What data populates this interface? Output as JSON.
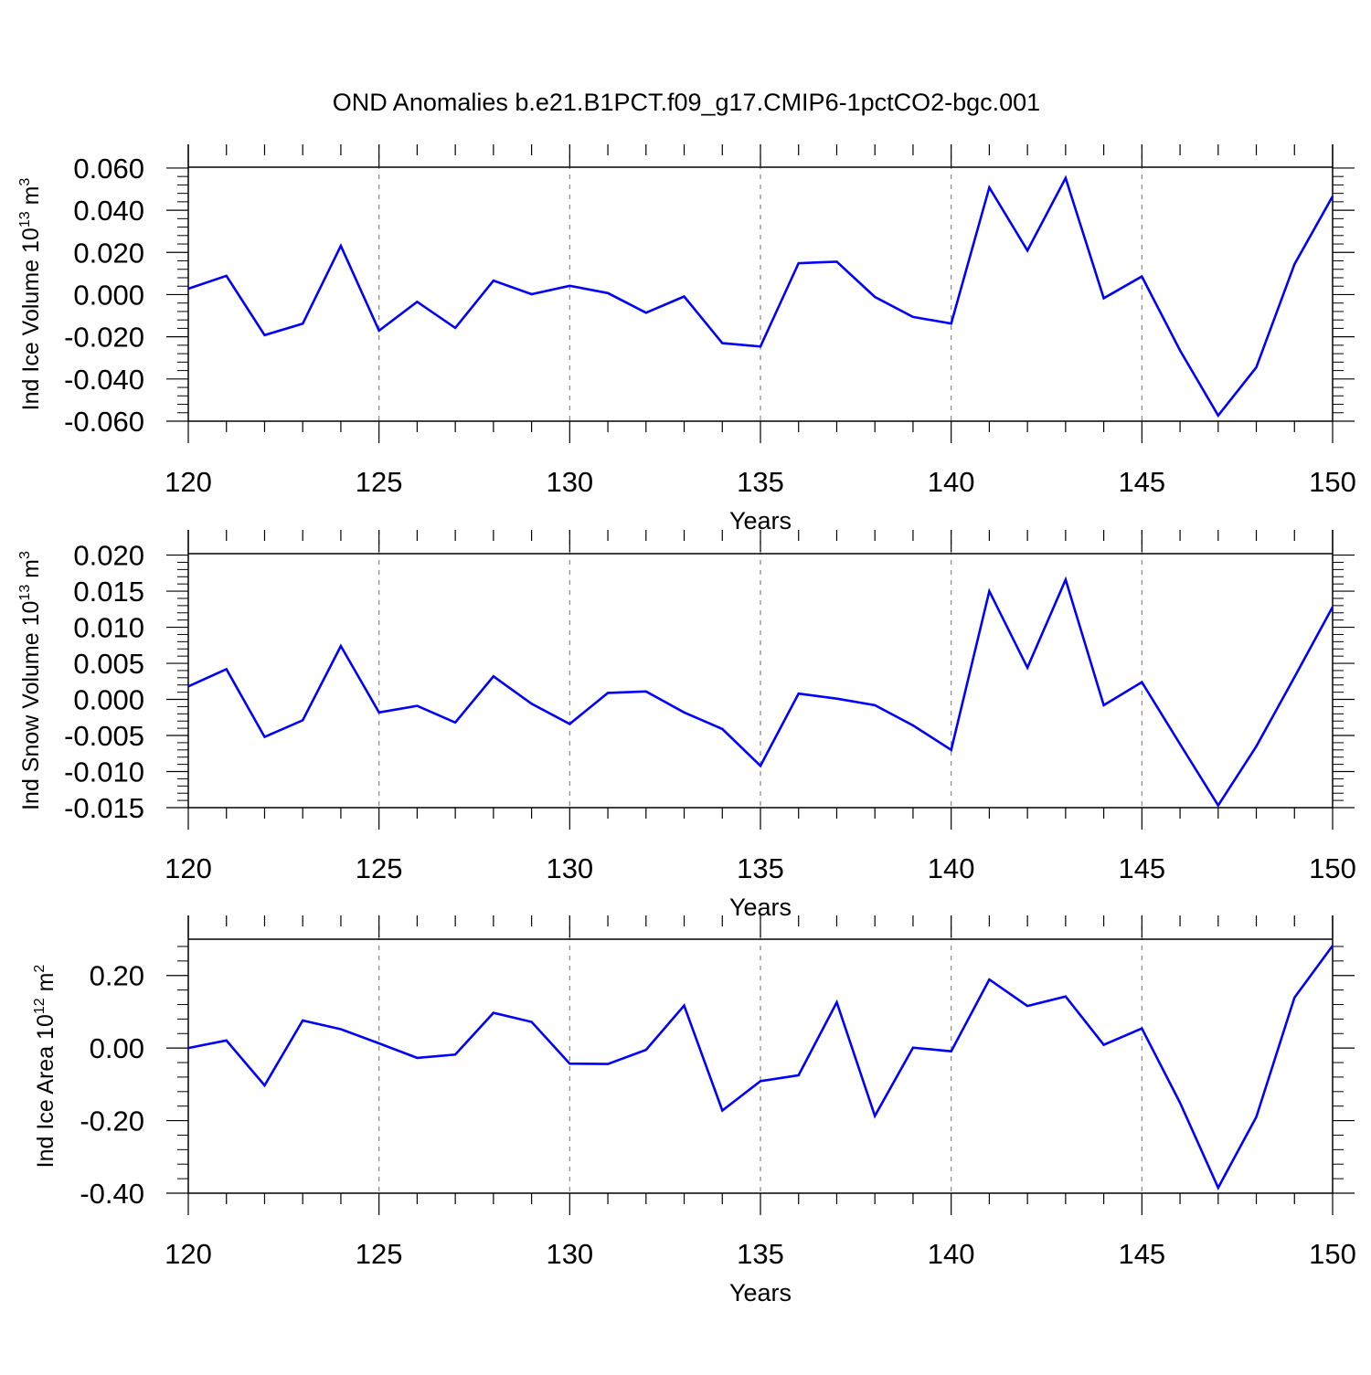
{
  "figure_title": "OND Anomalies b.e21.B1PCT.f09_g17.CMIP6-1pctCO2-bgc.001",
  "line_color": "#0000ff",
  "chart_data": [
    {
      "type": "line",
      "ylabel": {
        "main": "Ind Ice Volume 10",
        "sup": "13",
        "unit": " m",
        "unit_sup": "3"
      },
      "xlabel": "Years",
      "xlim": [
        120,
        150
      ],
      "ylim": [
        -0.06,
        0.0604
      ],
      "xticks": [
        120,
        125,
        130,
        135,
        140,
        145,
        150
      ],
      "xtick_labels": [
        "120",
        "125",
        "130",
        "135",
        "140",
        "145",
        "150"
      ],
      "yticks": [
        -0.06,
        -0.04,
        -0.02,
        0.0,
        0.02,
        0.04,
        0.06
      ],
      "ytick_labels": [
        "-0.060",
        "-0.040",
        "-0.020",
        "0.000",
        "0.020",
        "0.040",
        "0.060"
      ],
      "grid": "vertical dashed at major x ticks",
      "x": [
        120,
        121,
        122,
        123,
        124,
        125,
        126,
        127,
        128,
        129,
        130,
        131,
        132,
        133,
        134,
        135,
        136,
        137,
        138,
        139,
        140,
        141,
        142,
        143,
        144,
        145,
        146,
        147,
        148,
        149,
        150
      ],
      "values": [
        0.0028,
        0.0089,
        -0.0192,
        -0.0138,
        0.0231,
        -0.0171,
        -0.0034,
        -0.0158,
        0.0066,
        0.0002,
        0.0042,
        0.0007,
        -0.0086,
        -0.0009,
        -0.023,
        -0.0246,
        0.0149,
        0.0156,
        -0.0011,
        -0.0106,
        -0.0137,
        0.0508,
        0.0209,
        0.0553,
        -0.0017,
        0.0086,
        -0.0265,
        -0.0573,
        -0.0345,
        0.0144,
        0.0466
      ]
    },
    {
      "type": "line",
      "ylabel": {
        "main": "Ind Snow Volume 10",
        "sup": "13",
        "unit": " m",
        "unit_sup": "3"
      },
      "xlabel": "Years",
      "xlim": [
        120,
        150
      ],
      "ylim": [
        -0.015,
        0.0202
      ],
      "xticks": [
        120,
        125,
        130,
        135,
        140,
        145,
        150
      ],
      "xtick_labels": [
        "120",
        "125",
        "130",
        "135",
        "140",
        "145",
        "150"
      ],
      "yticks": [
        -0.015,
        -0.01,
        -0.005,
        0.0,
        0.005,
        0.01,
        0.015,
        0.02
      ],
      "ytick_labels": [
        "-0.015",
        "-0.010",
        "-0.005",
        "0.000",
        "0.005",
        "0.010",
        "0.015",
        "0.020"
      ],
      "grid": "vertical dashed at major x ticks",
      "x": [
        120,
        121,
        122,
        123,
        124,
        125,
        126,
        127,
        128,
        129,
        130,
        131,
        132,
        133,
        134,
        135,
        136,
        137,
        138,
        139,
        140,
        141,
        142,
        143,
        144,
        145,
        146,
        147,
        148,
        149,
        150
      ],
      "values": [
        0.0018,
        0.0042,
        -0.0052,
        -0.0029,
        0.0074,
        -0.0018,
        -0.0009,
        -0.0032,
        0.0032,
        -0.0006,
        -0.0034,
        0.0009,
        0.0011,
        -0.0018,
        -0.0041,
        -0.0092,
        0.0008,
        0.0001,
        -0.0008,
        -0.0036,
        -0.007,
        0.015,
        0.0044,
        0.0166,
        -0.0008,
        0.0024,
        -0.0062,
        -0.0147,
        -0.0065,
        0.0031,
        0.0128
      ]
    },
    {
      "type": "line",
      "ylabel": {
        "main": "Ind Ice Area 10",
        "sup": "12",
        "unit": " m",
        "unit_sup": "2"
      },
      "xlabel": "Years",
      "xlim": [
        120,
        150
      ],
      "ylim": [
        -0.4,
        0.3
      ],
      "xticks": [
        120,
        125,
        130,
        135,
        140,
        145,
        150
      ],
      "xtick_labels": [
        "120",
        "125",
        "130",
        "135",
        "140",
        "145",
        "150"
      ],
      "yticks": [
        -0.4,
        -0.2,
        0.0,
        0.2
      ],
      "ytick_labels": [
        "-0.40",
        "-0.20",
        "0.00",
        "0.20"
      ],
      "grid": "vertical dashed at major x ticks",
      "x": [
        120,
        121,
        122,
        123,
        124,
        125,
        126,
        127,
        128,
        129,
        130,
        131,
        132,
        133,
        134,
        135,
        136,
        137,
        138,
        139,
        140,
        141,
        142,
        143,
        144,
        145,
        146,
        147,
        148,
        149,
        150
      ],
      "values": [
        0.0,
        0.021,
        -0.103,
        0.076,
        0.052,
        0.013,
        -0.027,
        -0.018,
        0.097,
        0.072,
        -0.043,
        -0.044,
        -0.005,
        0.117,
        -0.172,
        -0.091,
        -0.075,
        0.126,
        -0.187,
        0.001,
        -0.009,
        0.189,
        0.116,
        0.142,
        0.009,
        0.054,
        -0.151,
        -0.385,
        -0.19,
        0.139,
        0.282
      ]
    }
  ]
}
